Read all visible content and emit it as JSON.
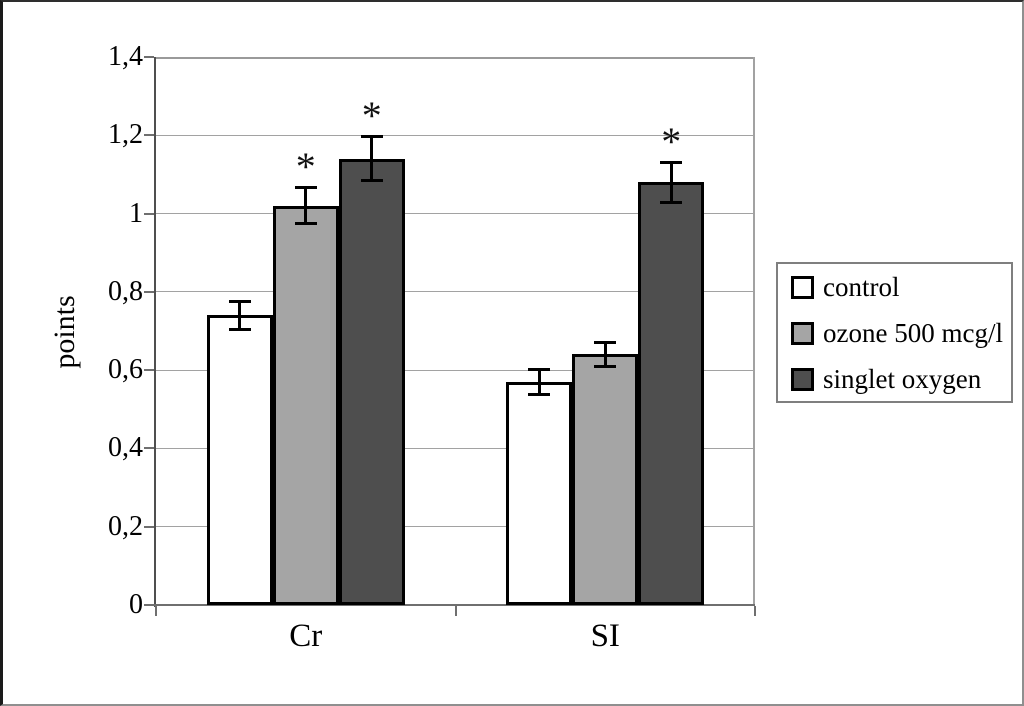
{
  "chart_data": {
    "type": "bar",
    "title": "",
    "xlabel": "",
    "ylabel": "points",
    "categories": [
      "Cr",
      "SI"
    ],
    "series": [
      {
        "name": "control",
        "fill": "#ffffff",
        "values": [
          0.74,
          0.57
        ],
        "errors": [
          0.04,
          0.035
        ],
        "significant": [
          false,
          false
        ]
      },
      {
        "name": "ozone 500 mcg/l",
        "fill": "#a5a5a5",
        "values": [
          1.02,
          0.64
        ],
        "errors": [
          0.05,
          0.035
        ],
        "significant": [
          true,
          false
        ]
      },
      {
        "name": "singlet oxygen",
        "fill": "#4e4e4e",
        "values": [
          1.14,
          1.08
        ],
        "errors": [
          0.06,
          0.055
        ],
        "significant": [
          true,
          true
        ]
      }
    ],
    "significance_marker": "*",
    "ylim": [
      0,
      1.4
    ],
    "ytick_step": 0.2,
    "ytick_labels": [
      "0",
      "0,2",
      "0,4",
      "0,6",
      "0,8",
      "1",
      "1,2",
      "1,4"
    ],
    "grid": true,
    "legend_position": "right",
    "colors": {
      "bar_border": "#000000",
      "gridline": "#a2a2a2",
      "axis": "#4f4f4f",
      "legend_border": "#7f7f7f"
    }
  }
}
